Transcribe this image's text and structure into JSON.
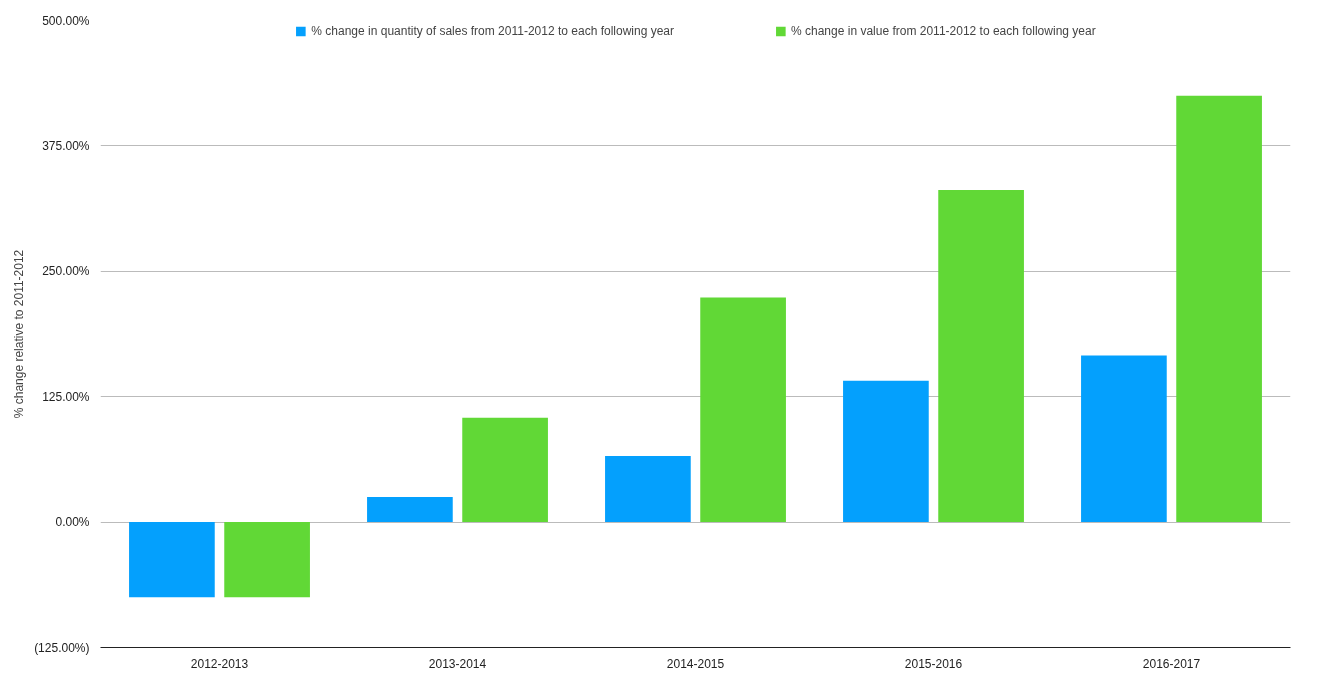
{
  "chart_data": {
    "type": "bar",
    "ylabel": "% change relative to 2011-2012",
    "categories": [
      "2012-2013",
      "2013-2014",
      "2014-2015",
      "2015-2016",
      "2016-2017"
    ],
    "series": [
      {
        "name": "% change in quantity of sales from 2011-2012 to each following year",
        "color": "#04a0fd",
        "values": [
          -75,
          25,
          66,
          141,
          166
        ]
      },
      {
        "name": "% change in value from 2011-2012 to each following year",
        "color": "#61d836",
        "values": [
          -75,
          104,
          224,
          331,
          425
        ]
      }
    ],
    "ylim": [
      -125,
      500
    ],
    "yticks": [
      {
        "value": -125,
        "label": "(125.00%)"
      },
      {
        "value": 0,
        "label": "0.00%"
      },
      {
        "value": 125,
        "label": "125.00%"
      },
      {
        "value": 250,
        "label": "250.00%"
      },
      {
        "value": 375,
        "label": "375.00%"
      },
      {
        "value": 500,
        "label": "500.00%"
      }
    ],
    "grid": "y",
    "legend": "top"
  }
}
